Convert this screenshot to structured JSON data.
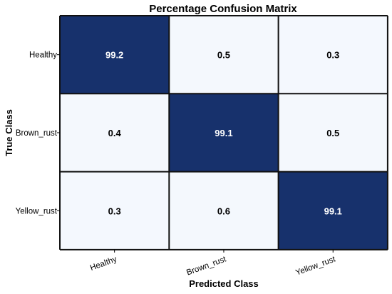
{
  "chart_data": {
    "type": "heatmap",
    "title": "Percentage Confusion Matrix",
    "xlabel": "Predicted Class",
    "ylabel": "True Class",
    "x_categories": [
      "Healthy",
      "Brown_rust",
      "Yellow_rust"
    ],
    "y_categories": [
      "Healthy",
      "Brown_rust",
      "Yellow_rust"
    ],
    "values": [
      [
        99.2,
        0.5,
        0.3
      ],
      [
        0.4,
        99.1,
        0.5
      ],
      [
        0.3,
        0.6,
        99.1
      ]
    ],
    "value_labels": [
      [
        "99.2",
        "0.5",
        "0.3"
      ],
      [
        "0.4",
        "99.1",
        "0.5"
      ],
      [
        "0.3",
        "0.6",
        "99.1"
      ]
    ],
    "vmin": 0,
    "vmax": 100,
    "colors": {
      "low": "#f5f9fe",
      "high": "#152f6b",
      "grid": "#111111",
      "text_dark": "#000000",
      "text_light": "#ffffff"
    },
    "grid": true,
    "legend": "none"
  }
}
